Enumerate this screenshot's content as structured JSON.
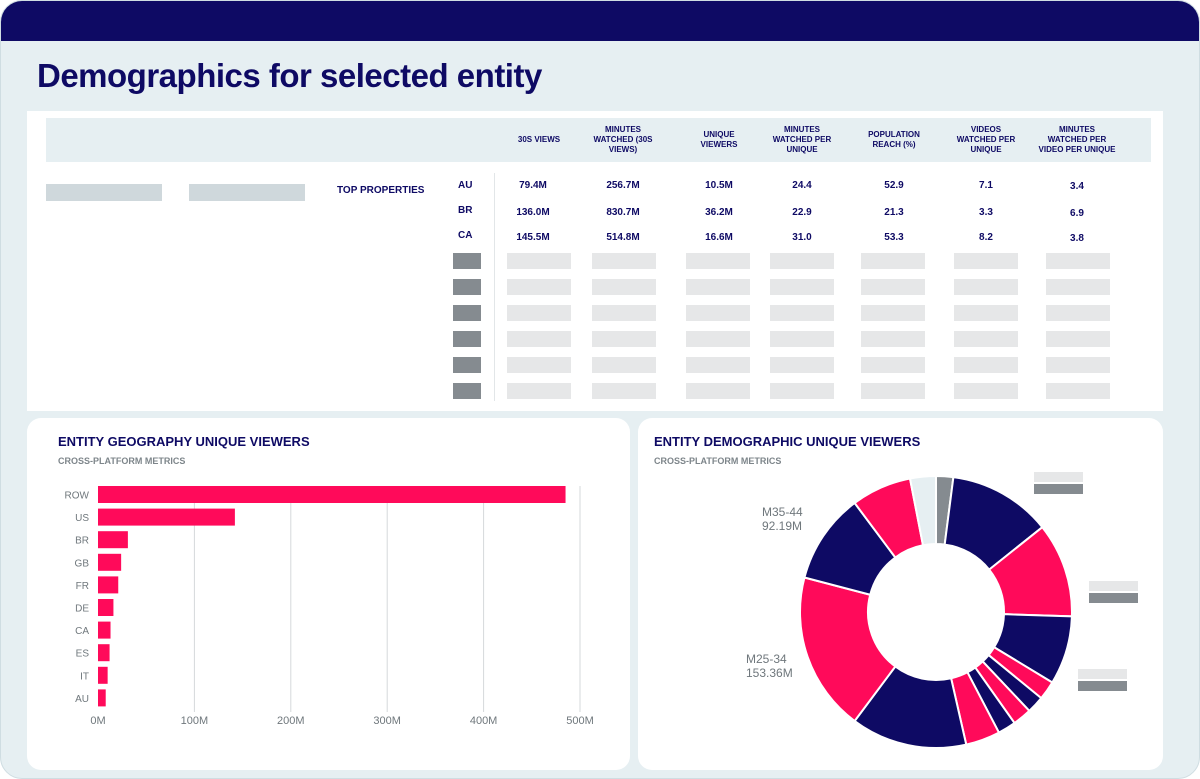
{
  "page": {
    "title": "Demographics for selected entity"
  },
  "table": {
    "headers": [
      "30S VIEWS",
      "MINUTES\nWATCHED (30S\nVIEWS)",
      "UNIQUE\nVIEWERS",
      "MINUTES\nWATCHED PER\nUNIQUE",
      "POPULATION\nREACH (%)",
      "VIDEOS\nWATCHED PER\nUNIQUE",
      "MINUTES\nWATCHED PER\nVIDEO PER UNIQUE"
    ],
    "row_group_label": "TOP PROPERTIES",
    "rows": [
      {
        "country": "AU",
        "values": [
          "79.4M",
          "256.7M",
          "10.5M",
          "24.4",
          "52.9",
          "7.1",
          "3.4"
        ]
      },
      {
        "country": "BR",
        "values": [
          "136.0M",
          "830.7M",
          "36.2M",
          "22.9",
          "21.3",
          "3.3",
          "6.9"
        ]
      },
      {
        "country": "CA",
        "values": [
          "145.5M",
          "514.8M",
          "16.6M",
          "31.0",
          "53.3",
          "8.2",
          "3.8"
        ]
      }
    ]
  },
  "geo_panel": {
    "title": "ENTITY GEOGRAPHY UNIQUE VIEWERS",
    "subtitle": "CROSS-PLATFORM METRICS"
  },
  "demo_panel": {
    "title": "ENTITY DEMOGRAPHIC  UNIQUE VIEWERS",
    "subtitle": "CROSS-PLATFORM METRICS"
  },
  "chart_data": [
    {
      "type": "bar",
      "orientation": "horizontal",
      "categories": [
        "ROW",
        "US",
        "BR",
        "GB",
        "FR",
        "DE",
        "CA",
        "ES",
        "IT",
        "AU"
      ],
      "values": [
        485,
        142,
        31,
        24,
        21,
        16,
        13,
        12,
        10,
        8
      ],
      "value_unit": "M",
      "xlim": [
        0,
        500
      ],
      "xticks": [
        0,
        100,
        200,
        300,
        400,
        500
      ],
      "xtick_labels": [
        "0M",
        "100M",
        "200M",
        "300M",
        "400M",
        "500M"
      ],
      "grid": true,
      "color": "#ff0a5a"
    },
    {
      "type": "pie",
      "donut": true,
      "slices": [
        {
          "value": 2.0,
          "color": "#858b90"
        },
        {
          "value": 12.0,
          "color": "#0e0a64"
        },
        {
          "value": 11.0,
          "color": "#ff0a5a"
        },
        {
          "value": 8.0,
          "color": "#0e0a64"
        },
        {
          "value": 2.2,
          "color": "#ff0a5a"
        },
        {
          "value": 2.0,
          "color": "#0e0a64"
        },
        {
          "value": 2.2,
          "color": "#ff0a5a"
        },
        {
          "value": 2.1,
          "color": "#0e0a64"
        },
        {
          "value": 4.0,
          "color": "#ff0a5a"
        },
        {
          "value": 13.5,
          "color": "#0e0a64"
        },
        {
          "value": 18.5,
          "color": "#ff0a5a"
        },
        {
          "value": 10.5,
          "color": "#0e0a64"
        },
        {
          "value": 7.0,
          "color": "#ff0a5a"
        },
        {
          "value": 3.0,
          "color": "#e6eff2"
        }
      ],
      "annotations": [
        {
          "label": "M35-44",
          "value": "92.19M"
        },
        {
          "label": "M25-34",
          "value": "153.36M"
        }
      ]
    }
  ]
}
